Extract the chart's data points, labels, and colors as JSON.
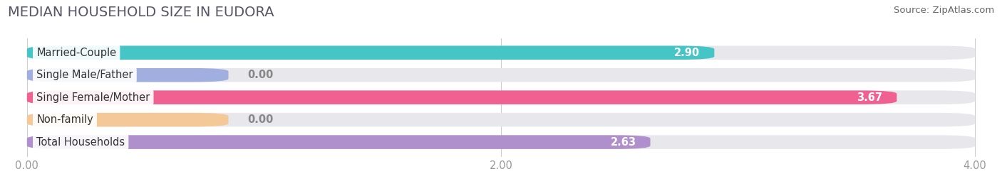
{
  "title": "MEDIAN HOUSEHOLD SIZE IN EUDORA",
  "source": "Source: ZipAtlas.com",
  "categories": [
    "Married-Couple",
    "Single Male/Father",
    "Single Female/Mother",
    "Non-family",
    "Total Households"
  ],
  "values": [
    2.9,
    0.0,
    3.67,
    0.0,
    2.63
  ],
  "bar_colors": [
    "#45c5c5",
    "#a0aee0",
    "#f06090",
    "#f5c898",
    "#b090cc"
  ],
  "bar_bg_color": "#e8e8ec",
  "xlim_data": [
    0,
    4.0
  ],
  "xticks": [
    0.0,
    2.0,
    4.0
  ],
  "xtick_labels": [
    "0.00",
    "2.00",
    "4.00"
  ],
  "label_fontsize": 10.5,
  "value_fontsize": 10.5,
  "title_fontsize": 14,
  "source_fontsize": 9.5,
  "title_color": "#555566",
  "source_color": "#666666",
  "tick_color": "#999999",
  "grid_color": "#cccccc",
  "label_color": "#333333",
  "background_color": "#ffffff"
}
